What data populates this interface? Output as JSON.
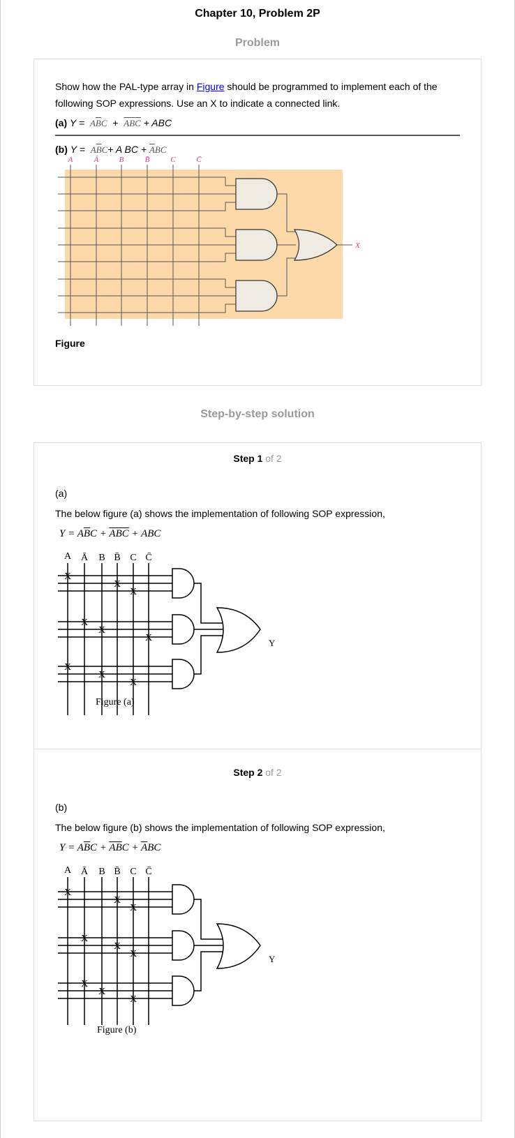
{
  "page": {
    "title": "Chapter 10, Problem 2P",
    "problem_heading": "Problem",
    "solution_heading": "Step-by-step solution"
  },
  "problem": {
    "text_before_link": "Show how the PAL-type array in ",
    "link_text": "Figure",
    "text_after_link": " should be programmed to implement each of the following SOP expressions. Use an X to indicate a connected link.",
    "part_a_label": "(a)",
    "part_b_label": "(b)",
    "figure_caption": "Figure",
    "figure_inputs": [
      "A",
      "Ā",
      "B",
      "B̄",
      "C",
      "C̄"
    ],
    "figure_output": "X",
    "colors": {
      "array_fill": "#fdd9a9",
      "gate_fill": "#efebe2",
      "input_label": "#e0338a"
    }
  },
  "steps": [
    {
      "number": "Step 1",
      "of": " of 2",
      "part": "(a)",
      "text": "The below figure (a) shows the implementation of following SOP expression,",
      "figure_inputs": [
        "A",
        "Ā",
        "B",
        "B̄",
        "C",
        "C̄"
      ],
      "output": "Y",
      "caption": "Figure (a)"
    },
    {
      "number": "Step 2",
      "of": " of 2",
      "part": "(b)",
      "text": "The below figure (b) shows the implementation of following SOP expression,",
      "figure_inputs": [
        "A",
        "Ā",
        "B",
        "B̄",
        "C",
        "C̄"
      ],
      "output": "Y",
      "caption": "Figure (b)"
    }
  ]
}
